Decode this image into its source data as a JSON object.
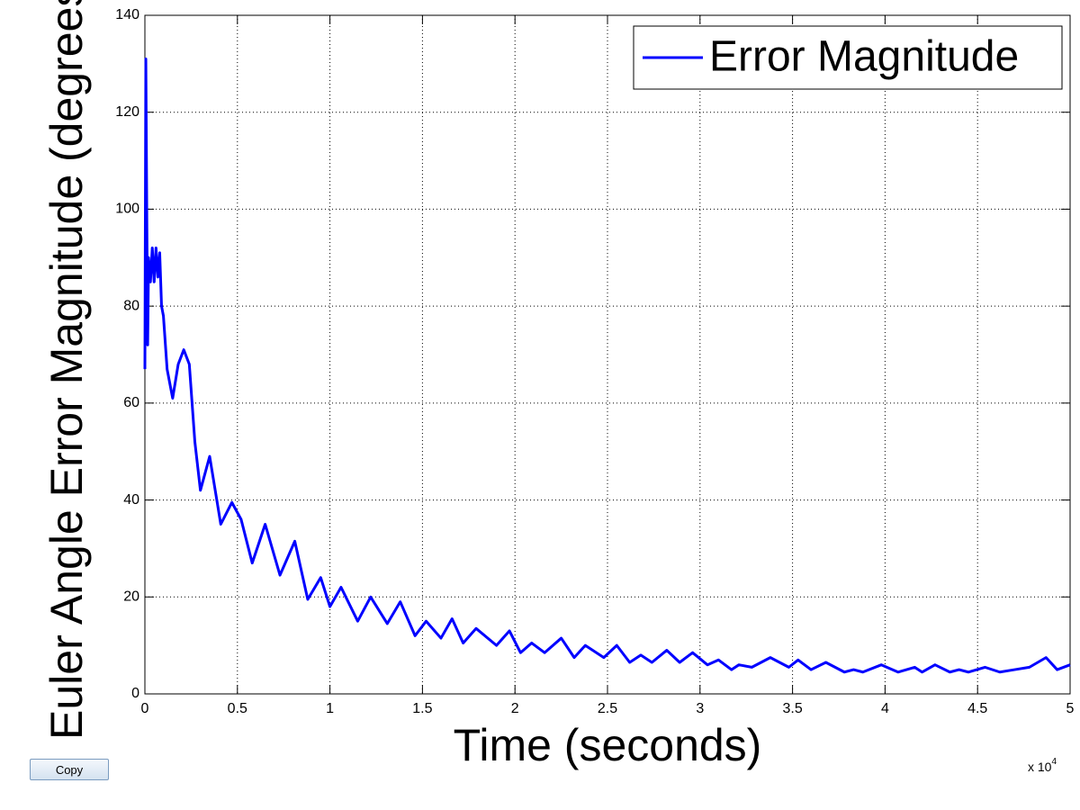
{
  "chart_data": {
    "type": "line",
    "x_label": "Time (seconds)",
    "y_label": "Euler Angle Error Magnitude (degrees)",
    "x_multiplier": "x 10",
    "x_multiplier_exponent": "4",
    "x": [
      0,
      0.005,
      0.01,
      0.015,
      0.02,
      0.03,
      0.04,
      0.05,
      0.06,
      0.07,
      0.08,
      0.09,
      0.1,
      0.12,
      0.15,
      0.18,
      0.21,
      0.24,
      0.27,
      0.3,
      0.35,
      0.41,
      0.47,
      0.52,
      0.58,
      0.65,
      0.73,
      0.81,
      0.88,
      0.95,
      1.0,
      1.06,
      1.15,
      1.22,
      1.31,
      1.38,
      1.46,
      1.52,
      1.6,
      1.66,
      1.72,
      1.79,
      1.9,
      1.97,
      2.03,
      2.09,
      2.16,
      2.25,
      2.32,
      2.38,
      2.48,
      2.55,
      2.62,
      2.68,
      2.74,
      2.82,
      2.89,
      2.96,
      3.04,
      3.1,
      3.17,
      3.21,
      3.28,
      3.38,
      3.48,
      3.53,
      3.6,
      3.68,
      3.78,
      3.83,
      3.88,
      3.98,
      4.07,
      4.16,
      4.2,
      4.27,
      4.35,
      4.4,
      4.45,
      4.54,
      4.62,
      4.7,
      4.78,
      4.87,
      4.93,
      5.0
    ],
    "series": [
      {
        "name": "Error Magnitude",
        "color": "#0000ff",
        "values": [
          67,
          131,
          100,
          72,
          90,
          85,
          92,
          85,
          92,
          86,
          91,
          80,
          78,
          67,
          61,
          68,
          71,
          68,
          52,
          42,
          49,
          35,
          39.5,
          36,
          27,
          35,
          24.5,
          31.5,
          19.5,
          24,
          18,
          22,
          15,
          20,
          14.5,
          19,
          12,
          15,
          11.5,
          15.5,
          10.5,
          13.5,
          10,
          13,
          8.5,
          10.5,
          8.5,
          11.5,
          7.5,
          10,
          7.5,
          10,
          6.5,
          8,
          6.5,
          9,
          6.5,
          8.5,
          6,
          7,
          5,
          6,
          5.5,
          7.5,
          5.5,
          7,
          5,
          6.5,
          4.5,
          5,
          4.5,
          6,
          4.5,
          5.5,
          4.5,
          6,
          4.5,
          5,
          4.5,
          5.5,
          4.5,
          5,
          5.5,
          7.5,
          5,
          6
        ]
      }
    ],
    "xlim": [
      0,
      5
    ],
    "xticks": [
      0,
      0.5,
      1,
      1.5,
      2,
      2.5,
      3,
      3.5,
      4,
      4.5,
      5
    ],
    "ylim": [
      0,
      140
    ],
    "yticks": [
      0,
      20,
      40,
      60,
      80,
      100,
      120,
      140
    ],
    "grid": true,
    "legend": "upper right"
  },
  "button": {
    "label": "Copy"
  }
}
